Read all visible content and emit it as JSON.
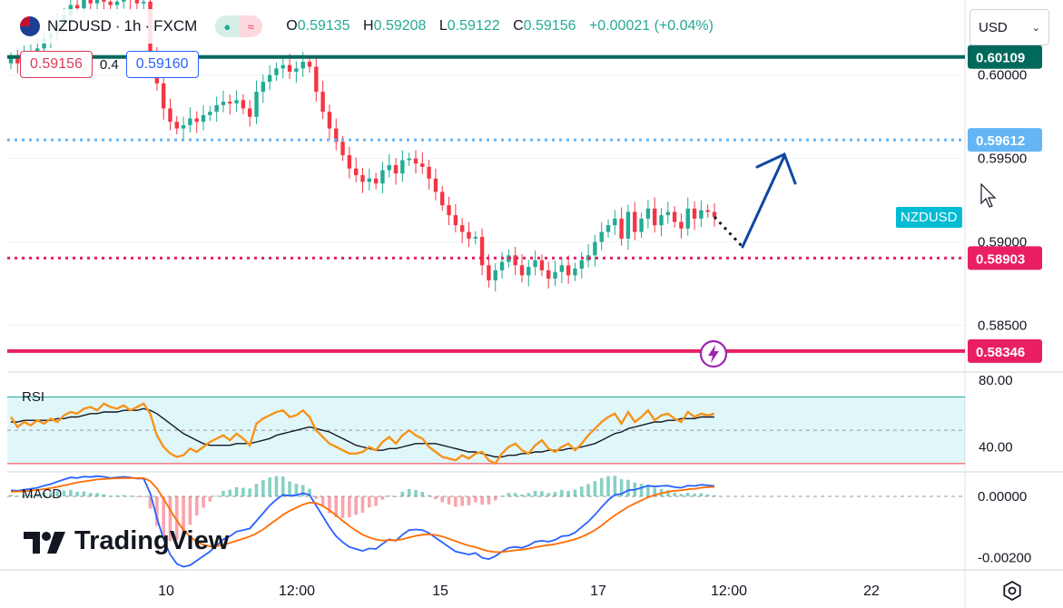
{
  "header": {
    "symbol": "NZDUSD",
    "sep1": "·",
    "interval": "1h",
    "sep2": "·",
    "source": "FXCM",
    "open_label": "O",
    "open": "0.59135",
    "high_label": "H",
    "high": "0.59208",
    "low_label": "L",
    "low": "0.59122",
    "close_label": "C",
    "close": "0.59156",
    "change": "+0.00021 (+0.04%)"
  },
  "quote": {
    "sell": "0.59156",
    "spread": "0.4",
    "buy": "0.59160"
  },
  "currency": "USD",
  "brand": "TradingView",
  "symbol_tag": "NZDUSD",
  "colors": {
    "up": "#22ab94",
    "down": "#f23645",
    "resistance": "#00695c",
    "support_dotted": "#e91e63",
    "target_dotted": "#64b5f6",
    "arrow": "#0d47a1",
    "rsi_line": "#f7931a",
    "rsi_ma": "#131722",
    "macd_line": "#2962ff",
    "signal_line": "#ff6d00"
  },
  "chart_data": [
    {
      "type": "candlestick",
      "title": "NZDUSD · 1h · FXCM",
      "x_ticks": [
        "10",
        "12:00",
        "15",
        "17",
        "12:00",
        "22"
      ],
      "y_ticks": [
        "0.60000",
        "0.59500",
        "0.59000",
        "0.58500"
      ],
      "ylim": [
        0.5822,
        0.6045
      ],
      "close_series": [
        0.601,
        0.6007,
        0.6011,
        0.6014,
        0.6016,
        0.6022,
        0.6025,
        0.6031,
        0.6036,
        0.6042,
        0.604,
        0.6045,
        0.6043,
        0.6046,
        0.6044,
        0.6042,
        0.6044,
        0.6046,
        0.6045,
        0.6043,
        0.6044,
        0.601,
        0.5995,
        0.598,
        0.5972,
        0.5968,
        0.597,
        0.5974,
        0.5972,
        0.5976,
        0.5978,
        0.5982,
        0.5984,
        0.5983,
        0.5985,
        0.598,
        0.5975,
        0.599,
        0.5996,
        0.6,
        0.6004,
        0.6006,
        0.6002,
        0.6004,
        0.6008,
        0.6005,
        0.599,
        0.5978,
        0.5968,
        0.596,
        0.5952,
        0.5944,
        0.594,
        0.5936,
        0.5938,
        0.5935,
        0.5943,
        0.5946,
        0.5941,
        0.5949,
        0.595,
        0.5947,
        0.5945,
        0.5938,
        0.593,
        0.5922,
        0.5916,
        0.591,
        0.5906,
        0.5902,
        0.5903,
        0.5886,
        0.5877,
        0.5883,
        0.5888,
        0.5892,
        0.5886,
        0.588,
        0.5885,
        0.5889,
        0.5883,
        0.5878,
        0.5882,
        0.5886,
        0.588,
        0.5884,
        0.5889,
        0.5892,
        0.59,
        0.5906,
        0.591,
        0.5914,
        0.5902,
        0.5918,
        0.5906,
        0.5914,
        0.592,
        0.591,
        0.5916,
        0.5918,
        0.5912,
        0.5908,
        0.592,
        0.5914,
        0.5919,
        0.5918,
        0.5915
      ],
      "levels": [
        {
          "price": "0.60109",
          "style": "solid",
          "color": "#00695c"
        },
        {
          "price": "0.59612",
          "style": "dotted",
          "color": "#64b5f6"
        },
        {
          "price": "0.58903",
          "style": "dotted",
          "color": "#e91e63"
        },
        {
          "price": "0.58346",
          "style": "solid",
          "color": "#e91e63"
        }
      ]
    },
    {
      "type": "line",
      "name": "RSI",
      "y_ticks": [
        "80.00",
        "40.00"
      ],
      "ylim": [
        25,
        85
      ],
      "band": [
        30,
        70
      ],
      "mid": 50,
      "values": [
        58,
        52,
        55,
        53,
        56,
        54,
        57,
        55,
        59,
        61,
        60,
        63,
        64,
        62,
        66,
        64,
        63,
        65,
        62,
        64,
        66,
        60,
        47,
        40,
        36,
        34,
        35,
        39,
        37,
        40,
        43,
        45,
        47,
        44,
        48,
        45,
        41,
        54,
        57,
        59,
        61,
        62,
        58,
        59,
        62,
        58,
        50,
        46,
        42,
        40,
        38,
        36,
        36,
        37,
        40,
        38,
        43,
        46,
        42,
        47,
        50,
        47,
        45,
        40,
        37,
        34,
        33,
        32,
        35,
        33,
        36,
        37,
        32,
        30,
        36,
        40,
        42,
        38,
        36,
        41,
        44,
        39,
        37,
        40,
        42,
        38,
        42,
        47,
        51,
        55,
        58,
        60,
        54,
        61,
        55,
        58,
        62,
        56,
        59,
        60,
        57,
        55,
        61,
        58,
        60,
        59,
        60
      ],
      "ma": [
        55,
        55,
        56,
        56,
        56,
        56,
        56,
        57,
        57,
        58,
        58,
        59,
        60,
        60,
        61,
        61,
        61,
        62,
        62,
        62,
        63,
        62,
        60,
        57,
        54,
        51,
        48,
        46,
        44,
        42,
        41,
        41,
        41,
        41,
        42,
        42,
        42,
        43,
        44,
        45,
        47,
        48,
        49,
        50,
        51,
        52,
        51,
        50,
        49,
        47,
        45,
        43,
        41,
        40,
        39,
        38,
        38,
        39,
        39,
        40,
        41,
        42,
        42,
        42,
        42,
        41,
        40,
        39,
        38,
        37,
        37,
        36,
        35,
        34,
        34,
        35,
        35,
        36,
        36,
        37,
        37,
        38,
        38,
        38,
        39,
        39,
        40,
        41,
        42,
        44,
        46,
        48,
        49,
        51,
        52,
        53,
        54,
        55,
        55,
        56,
        56,
        57,
        57,
        57,
        58,
        58,
        58
      ]
    },
    {
      "type": "bar",
      "name": "MACD",
      "y_ticks": [
        "0.00000",
        "-0.00200"
      ],
      "ylim": [
        -0.0024,
        0.0008
      ],
      "macd": [
        0.0002,
        0.00018,
        0.00022,
        0.00025,
        0.00028,
        0.00035,
        0.0004,
        0.00048,
        0.00055,
        0.00062,
        0.0006,
        0.00065,
        0.00063,
        0.00066,
        0.00064,
        0.0006,
        0.00062,
        0.00064,
        0.00062,
        0.00058,
        0.00058,
        0.0001,
        -0.0007,
        -0.0014,
        -0.0019,
        -0.0022,
        -0.0023,
        -0.00225,
        -0.0021,
        -0.00195,
        -0.0018,
        -0.0016,
        -0.0014,
        -0.0013,
        -0.00115,
        -0.0011,
        -0.00105,
        -0.0008,
        -0.00055,
        -0.0003,
        -0.0001,
        5e-05,
        2e-05,
        4e-05,
        0.0001,
        5e-05,
        -0.0003,
        -0.00065,
        -0.001,
        -0.0013,
        -0.0015,
        -0.00165,
        -0.00172,
        -0.00178,
        -0.0017,
        -0.00172,
        -0.00155,
        -0.0014,
        -0.00145,
        -0.00125,
        -0.0011,
        -0.00108,
        -0.0011,
        -0.0012,
        -0.00135,
        -0.0015,
        -0.00165,
        -0.0018,
        -0.00185,
        -0.0019,
        -0.00185,
        -0.002,
        -0.00205,
        -0.00195,
        -0.0018,
        -0.00168,
        -0.00165,
        -0.00168,
        -0.0016,
        -0.00148,
        -0.00145,
        -0.00148,
        -0.00142,
        -0.0013,
        -0.00128,
        -0.00118,
        -0.001,
        -0.00082,
        -0.0006,
        -0.00035,
        -0.00012,
        5e-05,
        8e-05,
        0.0002,
        0.00022,
        0.00028,
        0.00035,
        0.00032,
        0.00034,
        0.00035,
        0.0003,
        0.00028,
        0.00035,
        0.00034,
        0.00038,
        0.00036,
        0.00034
      ],
      "signal": [
        0.00015,
        0.00016,
        0.00017,
        0.00019,
        0.00021,
        0.00024,
        0.00027,
        0.00031,
        0.00036,
        0.00041,
        0.00045,
        0.00049,
        0.00052,
        0.00055,
        0.00057,
        0.00058,
        0.00059,
        0.0006,
        0.0006,
        0.0006,
        0.0006,
        0.0005,
        0.00026,
        -8e-05,
        -0.00044,
        -0.00079,
        -0.00109,
        -0.00132,
        -0.00148,
        -0.00158,
        -0.00163,
        -0.00162,
        -0.00158,
        -0.00152,
        -0.00145,
        -0.00138,
        -0.00131,
        -0.00121,
        -0.00108,
        -0.00092,
        -0.00076,
        -0.0006,
        -0.00047,
        -0.00037,
        -0.00027,
        -0.0002,
        -0.00022,
        -0.00031,
        -0.00045,
        -0.00062,
        -0.0008,
        -0.00097,
        -0.00112,
        -0.00125,
        -0.00134,
        -0.00141,
        -0.00144,
        -0.00143,
        -0.00143,
        -0.0014,
        -0.00134,
        -0.00129,
        -0.00125,
        -0.00124,
        -0.00126,
        -0.00131,
        -0.00138,
        -0.00146,
        -0.00154,
        -0.00161,
        -0.00166,
        -0.00173,
        -0.00179,
        -0.00182,
        -0.00182,
        -0.00179,
        -0.00176,
        -0.00174,
        -0.00171,
        -0.00166,
        -0.00162,
        -0.00159,
        -0.00156,
        -0.00151,
        -0.00146,
        -0.0014,
        -0.00132,
        -0.00122,
        -0.0011,
        -0.00095,
        -0.00078,
        -0.00062,
        -0.00048,
        -0.00034,
        -0.00023,
        -0.00013,
        -3e-05,
        4e-05,
        0.0001,
        0.00015,
        0.00018,
        0.0002,
        0.00023,
        0.00025,
        0.00028,
        0.0003,
        0.00031
      ]
    }
  ]
}
